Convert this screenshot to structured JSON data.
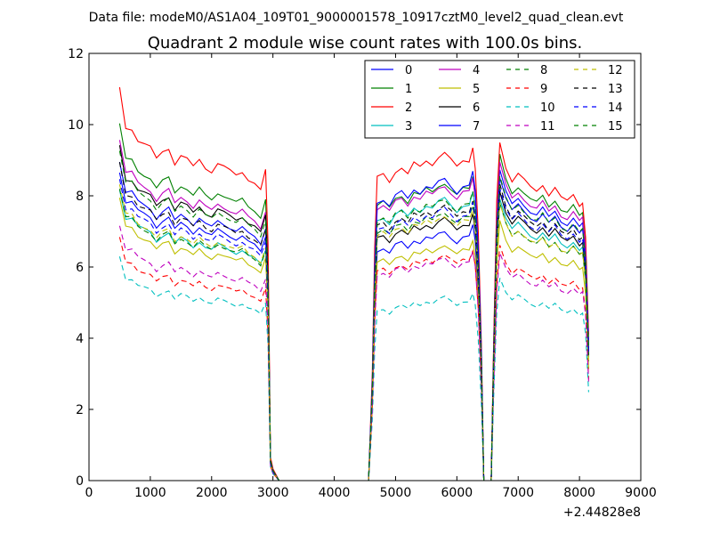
{
  "chart_data": {
    "type": "line",
    "suptitle": "Data file: modeM0/AS1A04_109T01_9000001578_10917cztM0_level2_quad_clean.evt",
    "title": "Quadrant 2 module wise count rates with 100.0s bins.",
    "xlabel": "",
    "ylabel": "",
    "x_offset_label": "+2.44828e8",
    "xlim": [
      0,
      9000
    ],
    "ylim": [
      0,
      12
    ],
    "xticks": [
      0,
      1000,
      2000,
      3000,
      4000,
      5000,
      6000,
      7000,
      8000,
      9000
    ],
    "yticks": [
      0,
      2,
      4,
      6,
      8,
      10,
      12
    ],
    "grid": false,
    "legend_position": "top-right",
    "legend_columns": 4,
    "segments": [
      {
        "x": [
          500,
          600,
          700,
          800,
          900,
          1000,
          1100,
          1200,
          1300,
          1400,
          1500,
          1600,
          1700,
          1800,
          1900,
          2000,
          2100,
          2200,
          2300,
          2400,
          2500,
          2600,
          2700,
          2800,
          2880
        ],
        "shape": [
          1.0,
          0.9,
          0.9,
          0.87,
          0.86,
          0.85,
          0.82,
          0.84,
          0.85,
          0.81,
          0.83,
          0.82,
          0.8,
          0.82,
          0.8,
          0.79,
          0.81,
          0.8,
          0.79,
          0.78,
          0.79,
          0.77,
          0.76,
          0.74,
          0.79
        ]
      },
      {
        "x": [
          2880,
          2920,
          2960,
          3000,
          3100,
          3500,
          4000,
          4400,
          4560,
          4620,
          4660,
          4700
        ],
        "shape": [
          0.79,
          0.6,
          0.06,
          0.03,
          0,
          0,
          0,
          0,
          0,
          0.3,
          0.65,
          0.85
        ]
      },
      {
        "x": [
          4700,
          4800,
          4900,
          5000,
          5100,
          5200,
          5300,
          5400,
          5500,
          5600,
          5700,
          5800,
          5900,
          6000,
          6100,
          6200,
          6260
        ],
        "shape": [
          0.85,
          0.86,
          0.84,
          0.87,
          0.88,
          0.86,
          0.89,
          0.88,
          0.9,
          0.89,
          0.91,
          0.92,
          0.9,
          0.88,
          0.9,
          0.9,
          0.94
        ]
      },
      {
        "x": [
          6260,
          6300,
          6350,
          6400,
          6440,
          6480,
          6520,
          6560,
          6600,
          6650,
          6700
        ],
        "shape": [
          0.94,
          0.88,
          0.7,
          0.38,
          0,
          0,
          0,
          0,
          0.4,
          0.8,
          0.97
        ]
      },
      {
        "x": [
          6700,
          6800,
          6900,
          7000,
          7100,
          7200,
          7300,
          7400,
          7500,
          7600,
          7700,
          7800,
          7900,
          8000,
          8050,
          8100,
          8150
        ],
        "shape": [
          0.97,
          0.9,
          0.86,
          0.88,
          0.86,
          0.84,
          0.83,
          0.85,
          0.82,
          0.84,
          0.81,
          0.8,
          0.82,
          0.79,
          0.8,
          0.7,
          0.42
        ]
      }
    ],
    "series": [
      {
        "name": "0",
        "color": "#0000ff",
        "dash": "solid",
        "rates": [
          9.0,
          7.6,
          9.0
        ]
      },
      {
        "name": "1",
        "color": "#008000",
        "dash": "solid",
        "rates": [
          10.0,
          9.1,
          9.4
        ]
      },
      {
        "name": "2",
        "color": "#ff0000",
        "dash": "solid",
        "rates": [
          11.0,
          10.0,
          9.8
        ]
      },
      {
        "name": "3",
        "color": "#00bfbf",
        "dash": "solid",
        "rates": [
          8.2,
          8.6,
          8.2
        ]
      },
      {
        "name": "4",
        "color": "#bf00bf",
        "dash": "solid",
        "rates": [
          9.6,
          9.0,
          9.2
        ]
      },
      {
        "name": "5",
        "color": "#bfbf00",
        "dash": "solid",
        "rates": [
          7.9,
          7.2,
          7.5
        ]
      },
      {
        "name": "6",
        "color": "#000000",
        "dash": "solid",
        "rates": [
          9.4,
          8.0,
          8.4
        ]
      },
      {
        "name": "7",
        "color": "#0000ff",
        "dash": "solid",
        "rates": [
          8.7,
          9.2,
          8.8
        ]
      },
      {
        "name": "8",
        "color": "#008000",
        "dash": "dashed",
        "rates": [
          8.2,
          8.2,
          8.0
        ]
      },
      {
        "name": "9",
        "color": "#ff0000",
        "dash": "dashed",
        "rates": [
          6.8,
          6.9,
          6.8
        ]
      },
      {
        "name": "10",
        "color": "#00bfbf",
        "dash": "dashed",
        "rates": [
          6.3,
          5.6,
          5.9
        ]
      },
      {
        "name": "11",
        "color": "#bf00bf",
        "dash": "dashed",
        "rates": [
          7.2,
          6.8,
          6.6
        ]
      },
      {
        "name": "12",
        "color": "#bfbf00",
        "dash": "dashed",
        "rates": [
          8.3,
          8.1,
          8.0
        ]
      },
      {
        "name": "13",
        "color": "#000000",
        "dash": "dashed",
        "rates": [
          8.9,
          8.4,
          8.6
        ]
      },
      {
        "name": "14",
        "color": "#0000ff",
        "dash": "dashed",
        "rates": [
          8.5,
          8.3,
          8.5
        ]
      },
      {
        "name": "15",
        "color": "#008000",
        "dash": "dashed",
        "rates": [
          9.3,
          8.6,
          8.8
        ]
      }
    ]
  }
}
